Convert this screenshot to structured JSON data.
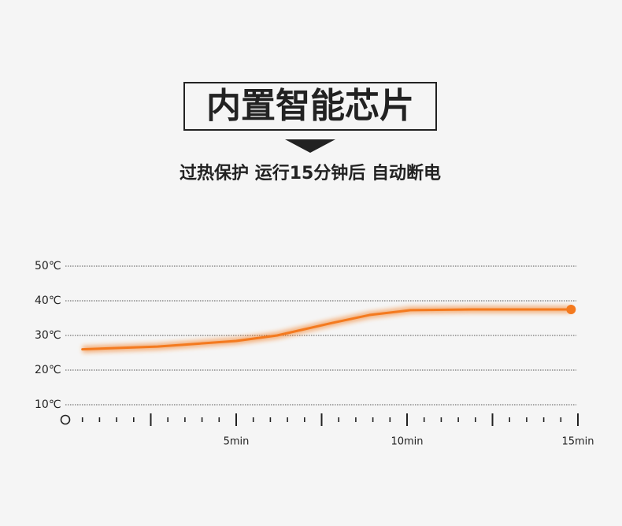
{
  "chart_data": {
    "type": "line",
    "title": "内置智能芯片",
    "subtitle": "过热保护 运行15分钟后 自动断电",
    "x": [
      0.5,
      2.7,
      5,
      6.2,
      7.8,
      8.9,
      10.1,
      11.9,
      14.8
    ],
    "series": [
      {
        "color": "#f47a1f",
        "values": [
          26,
          26.8,
          28.4,
          30,
          33.6,
          35.9,
          37.3,
          37.5,
          37.5
        ]
      }
    ],
    "xlim": [
      0,
      15
    ],
    "xticks": [
      {
        "value": 5,
        "label": "5min"
      },
      {
        "value": 10,
        "label": "10min"
      },
      {
        "value": 15,
        "label": "15min"
      }
    ],
    "ylim": [
      6,
      52
    ],
    "yticks": [
      {
        "value": 10,
        "label": "10℃"
      },
      {
        "value": 20,
        "label": "20℃"
      },
      {
        "value": 30,
        "label": "30℃"
      },
      {
        "value": 40,
        "label": "40℃"
      },
      {
        "value": 50,
        "label": "50℃"
      }
    ],
    "grid": true
  }
}
